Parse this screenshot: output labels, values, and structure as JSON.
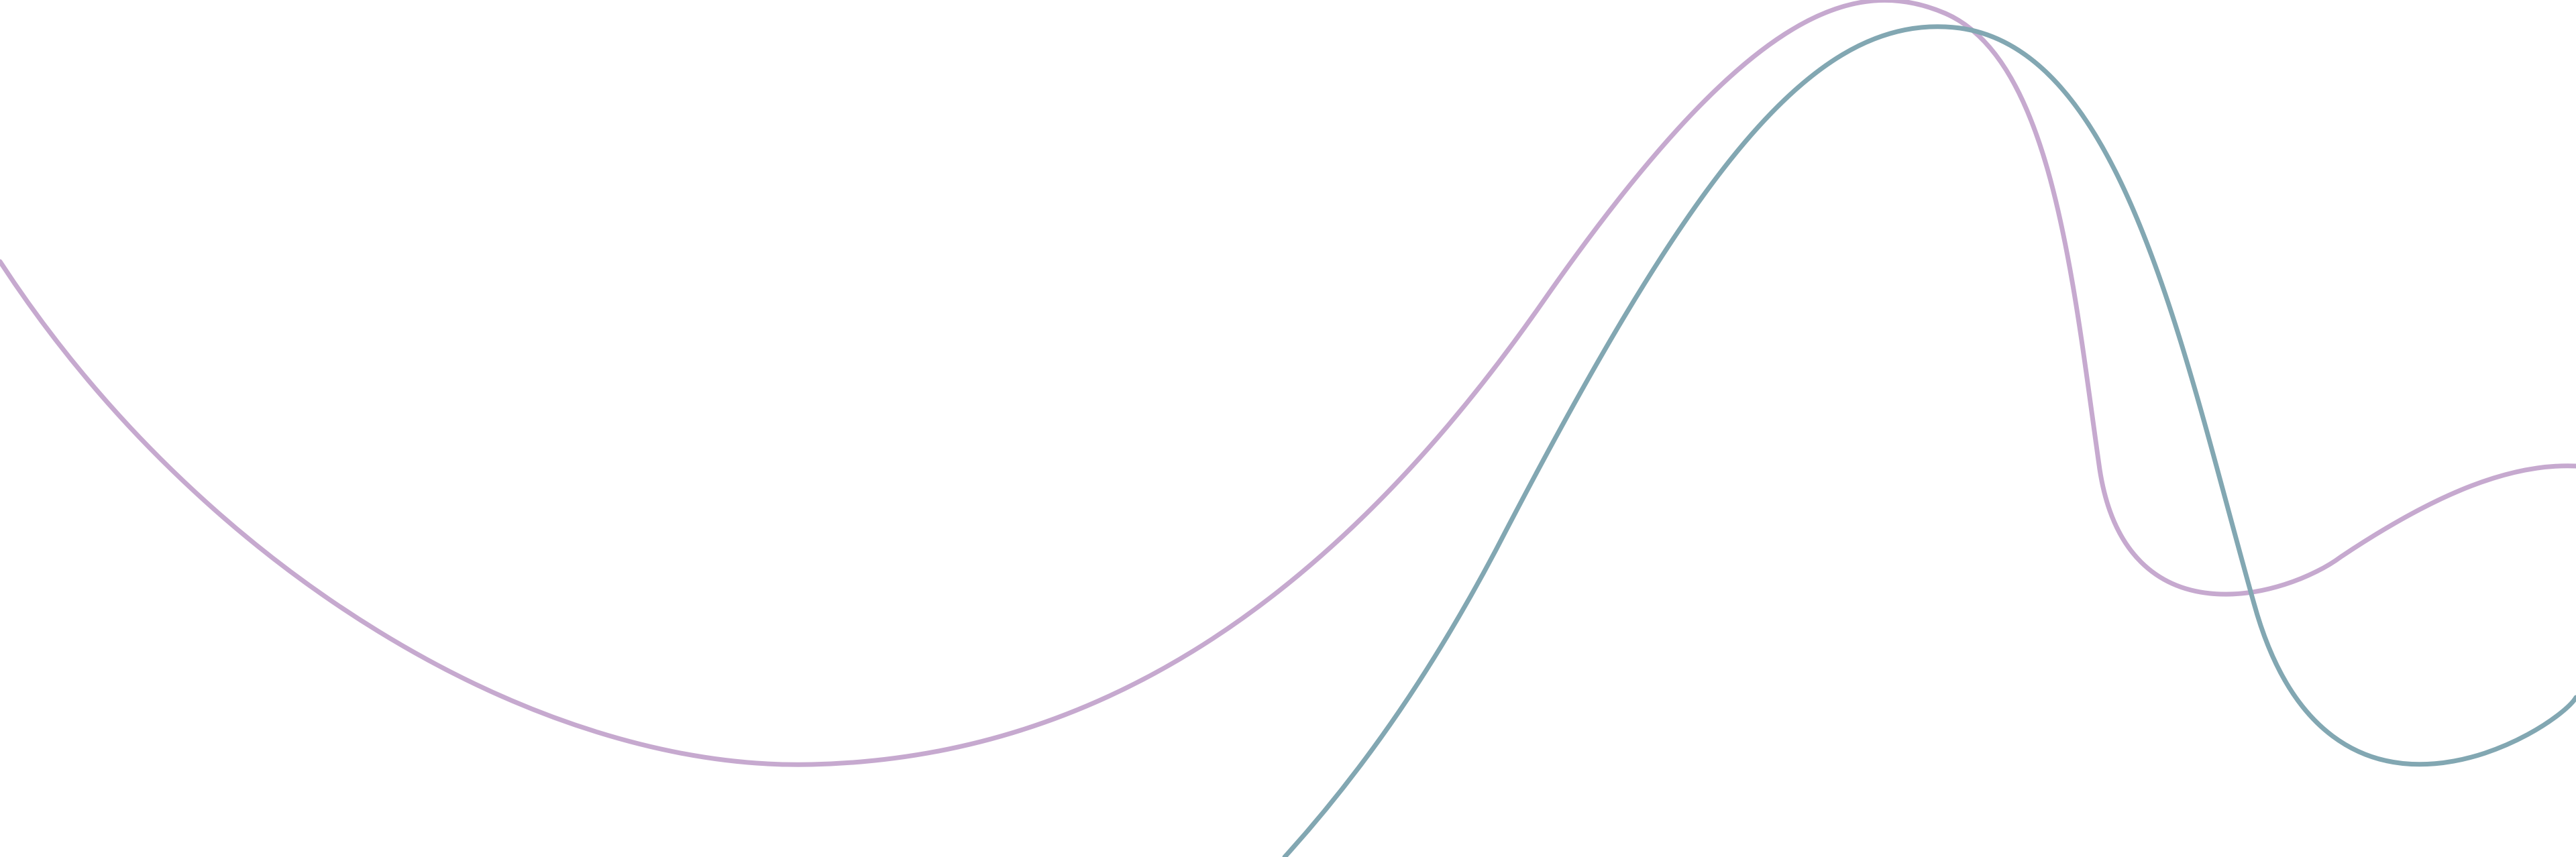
{
  "background": "#ffffff",
  "decoration": {
    "lines": [
      {
        "name": "purple-curve",
        "color": "#c6a9cf"
      },
      {
        "name": "teal-curve",
        "color": "#82a7b2"
      }
    ]
  }
}
